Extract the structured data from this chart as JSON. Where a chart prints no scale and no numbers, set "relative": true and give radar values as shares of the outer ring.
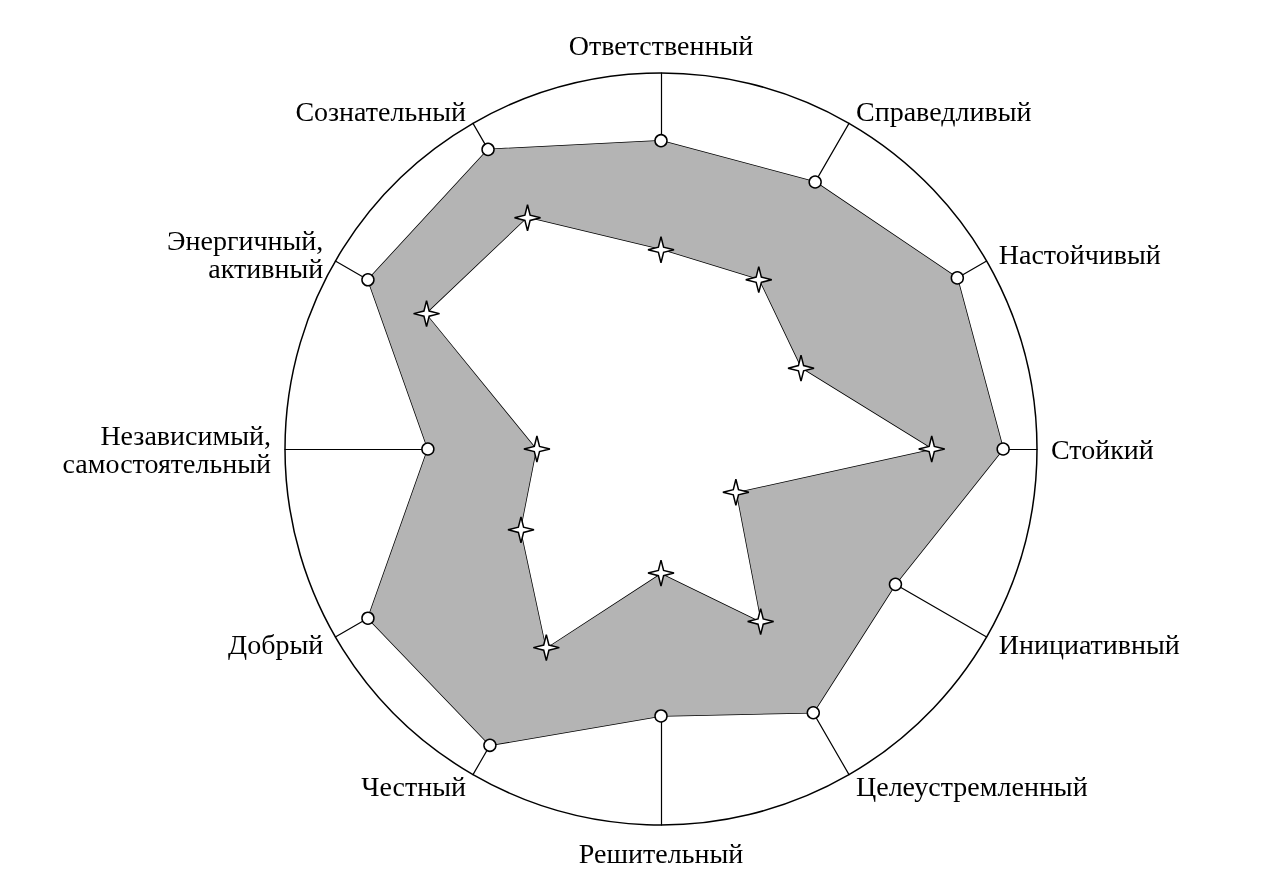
{
  "chart_data": {
    "type": "radar",
    "relative": true,
    "categories": [
      "Ответственный",
      "Справедливый",
      "Настойчивый",
      "Стойкий",
      "Инициативный",
      "Целеустремленный",
      "Решительный",
      "Честный",
      "Добрый",
      "Независимый,\nсамостоятельный",
      "Энергичный,\nактивный",
      "Сознательный"
    ],
    "series": [
      {
        "color": "#000000",
        "marker": "circle",
        "values": [
          0.82,
          0.82,
          0.91,
          0.91,
          0.72,
          0.81,
          0.71,
          0.91,
          0.9,
          0.62,
          0.9,
          0.92
        ]
      },
      {
        "color": "#000000",
        "marker": "star",
        "values": [
          0.53,
          0.52,
          0.43,
          0.72,
          0.23,
          0.53,
          0.33,
          0.61,
          0.43,
          0.33,
          0.72,
          0.71
        ]
      }
    ],
    "grid": false
  }
}
